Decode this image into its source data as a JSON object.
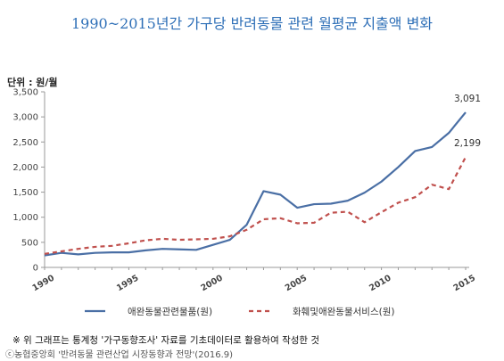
{
  "title": "1990~2015년간 가구당 반려동물 관련 월평균 지출액 변화",
  "unit_label": "단위 : 원/월",
  "footnote": "※ 위 그래프는 통계청 '가구동향조사' 자료를 기초데이터로 활용하여 작성한 것",
  "source": "ⓒ농협중앙회 '반려동물 관련산업 시장동향과 전망'(2016.9)",
  "colors": {
    "series1": "#4a6fa5",
    "series2": "#c0504d",
    "axis": "#999999"
  },
  "chart_data": {
    "type": "line",
    "x": [
      1990,
      1991,
      1992,
      1993,
      1994,
      1995,
      1996,
      1997,
      1998,
      1999,
      2000,
      2001,
      2002,
      2003,
      2004,
      2005,
      2006,
      2007,
      2008,
      2009,
      2010,
      2011,
      2012,
      2013,
      2014,
      2015
    ],
    "x_ticks": [
      "1990",
      "1995",
      "2000",
      "2005",
      "2010",
      "2015"
    ],
    "ylim": [
      0,
      3500
    ],
    "y_ticks": [
      "0",
      "500",
      "1,000",
      "1,500",
      "2,000",
      "2,500",
      "3,000",
      "3,500"
    ],
    "series": [
      {
        "name": "애완동물관련물품(원)",
        "style": "solid",
        "values": [
          240,
          290,
          260,
          290,
          300,
          300,
          340,
          370,
          360,
          350,
          450,
          550,
          850,
          1520,
          1450,
          1190,
          1260,
          1270,
          1330,
          1490,
          1710,
          2000,
          2320,
          2400,
          2680,
          3091
        ],
        "end_label": "3,091"
      },
      {
        "name": "화훼및애완동물서비스(원)",
        "style": "dashed",
        "values": [
          270,
          320,
          370,
          410,
          430,
          480,
          540,
          570,
          550,
          560,
          570,
          620,
          750,
          960,
          980,
          880,
          890,
          1090,
          1110,
          900,
          1100,
          1290,
          1400,
          1650,
          1560,
          2199
        ],
        "end_label": "2,199"
      }
    ],
    "grid": false,
    "legend_position": "bottom"
  }
}
